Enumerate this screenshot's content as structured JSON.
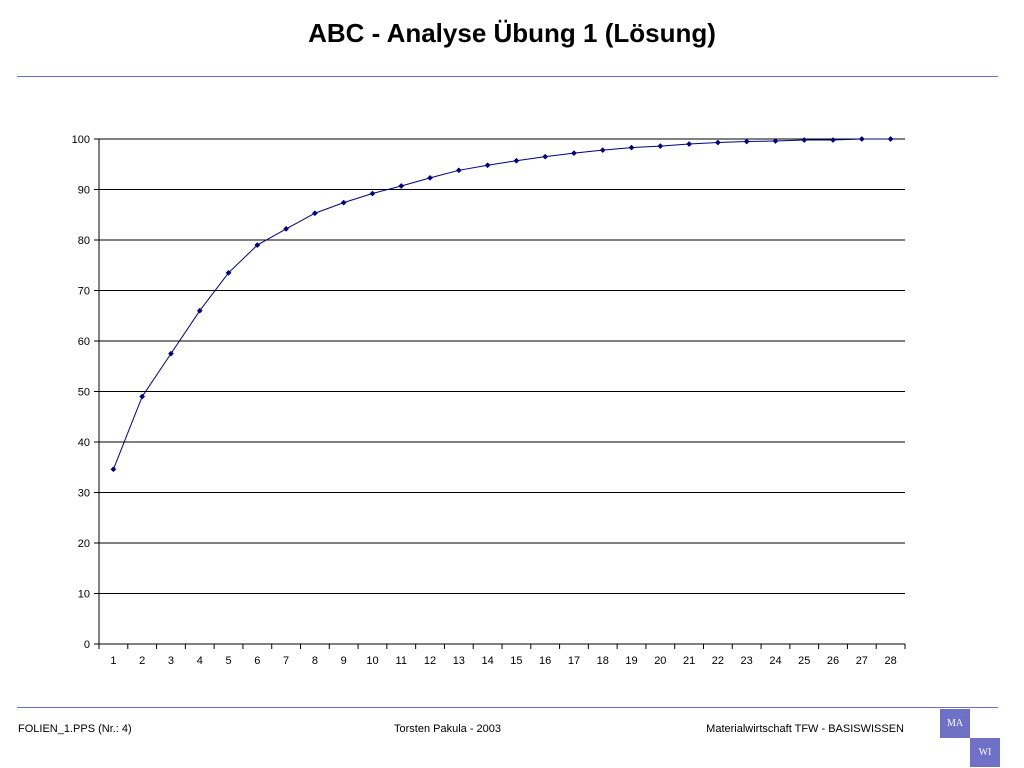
{
  "slide": {
    "title": "ABC - Analyse Übung 1 (Lösung)"
  },
  "footer": {
    "left": "FOLIEN_1.PPS (Nr.: 4)",
    "center": "Torsten Pakula - 2003",
    "right": "Materialwirtschaft TFW - BASISWISSEN"
  },
  "logo": {
    "top_left": "MA",
    "bottom_right": "WI"
  },
  "colors": {
    "series": "#000080",
    "rule": "#6d6fd0",
    "logo": "#6e71c6"
  },
  "chart_data": {
    "type": "line",
    "title": "",
    "xlabel": "",
    "ylabel": "",
    "x": [
      1,
      2,
      3,
      4,
      5,
      6,
      7,
      8,
      9,
      10,
      11,
      12,
      13,
      14,
      15,
      16,
      17,
      18,
      19,
      20,
      21,
      22,
      23,
      24,
      25,
      26,
      27,
      28
    ],
    "series": [
      {
        "values": [
          34.6,
          49.0,
          57.5,
          66.0,
          73.5,
          79.0,
          82.2,
          85.3,
          87.4,
          89.2,
          90.7,
          92.3,
          93.8,
          94.8,
          95.7,
          96.5,
          97.2,
          97.8,
          98.3,
          98.6,
          99.0,
          99.3,
          99.5,
          99.6,
          99.8,
          99.8,
          100.0,
          100.0
        ],
        "marker": "diamond"
      }
    ],
    "ylim": [
      0,
      100
    ],
    "yticks": [
      0,
      10,
      20,
      30,
      40,
      50,
      60,
      70,
      80,
      90,
      100
    ],
    "grid": "horizontal",
    "legend": "none"
  }
}
